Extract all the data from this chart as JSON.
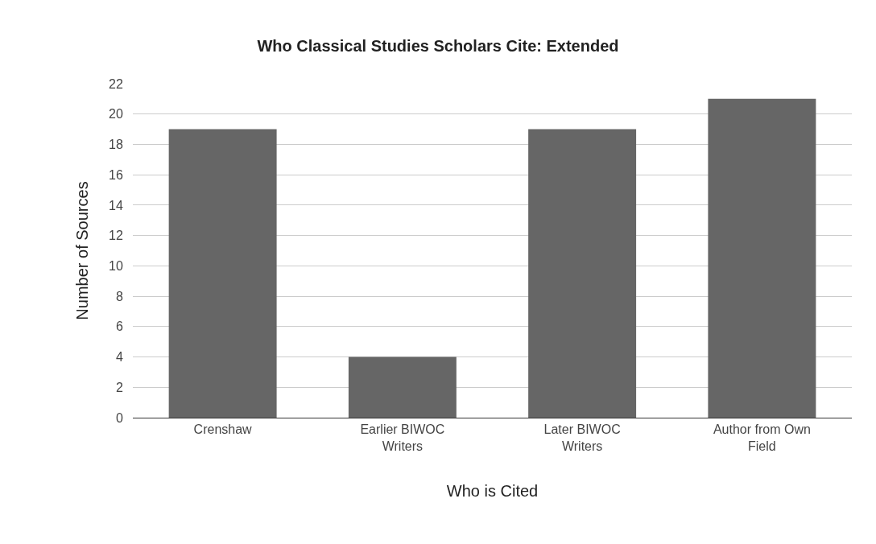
{
  "chart_data": {
    "type": "bar",
    "title": "Who Classical Studies Scholars Cite: Extended",
    "xlabel": "Who is Cited",
    "ylabel": "Number of Sources",
    "categories": [
      "Crenshaw",
      "Earlier BIWOC Writers",
      "Later BIWOC Writers",
      "Author from Own Field"
    ],
    "values": [
      19,
      4,
      19,
      21
    ],
    "color": "#666666",
    "ylim": [
      0,
      22
    ],
    "yticks": [
      0,
      2,
      4,
      6,
      8,
      10,
      12,
      14,
      16,
      18,
      20,
      22
    ],
    "grid": "y",
    "legend": false
  }
}
